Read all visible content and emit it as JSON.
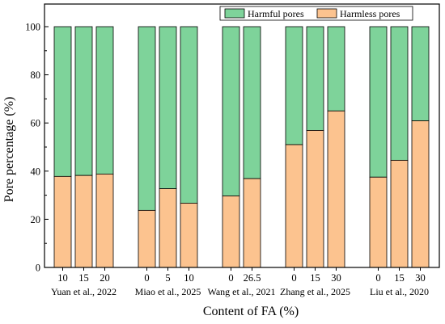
{
  "chart_data": {
    "type": "bar",
    "stacked": true,
    "xlabel": "Content of FA (%)",
    "ylabel": "Pore percentage (%)",
    "ylim": [
      0,
      100
    ],
    "yticks": [
      0,
      20,
      40,
      60,
      80,
      100
    ],
    "grid": false,
    "legend_position": "top-right",
    "groups": [
      {
        "label": "Yuan et al., 2022",
        "categories": [
          "10",
          "15",
          "20"
        ],
        "harmless": [
          37.8,
          38.2,
          38.8
        ]
      },
      {
        "label": "Miao et al., 2025",
        "categories": [
          "0",
          "5",
          "10"
        ],
        "harmless": [
          23.7,
          32.7,
          26.7
        ]
      },
      {
        "label": "Wang et al., 2021",
        "categories": [
          "0",
          "26.5"
        ],
        "harmless": [
          29.7,
          36.9
        ]
      },
      {
        "label": "Zhang et al., 2025",
        "categories": [
          "0",
          "15",
          "30"
        ],
        "harmless": [
          51.0,
          56.9,
          65.0
        ]
      },
      {
        "label": "Liu et al., 2020",
        "categories": [
          "0",
          "15",
          "30"
        ],
        "harmless": [
          37.5,
          44.5,
          60.9
        ]
      }
    ],
    "series": [
      {
        "name": "Harmless pores",
        "color": "#fcc38f",
        "key": "harmless"
      },
      {
        "name": "Harmful pores",
        "color": "#7ed39a",
        "key": "harmful",
        "stack_total": 100
      }
    ],
    "legend": [
      {
        "name": "Harmful pores",
        "color": "#7ed39a"
      },
      {
        "name": "Harmless pores",
        "color": "#fcc38f"
      }
    ]
  }
}
